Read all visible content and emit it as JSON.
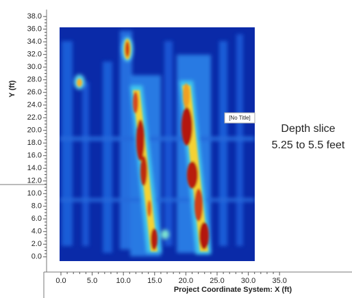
{
  "chart_data": {
    "type": "heatmap",
    "inner_title": "[No Title]",
    "xlabel": "Project Coordinate System: X (ft)",
    "ylabel": "Y (ft)",
    "annotation": [
      "Depth slice",
      "5.25 to 5.5 feet"
    ],
    "xlim": [
      -2.3,
      46.6
    ],
    "ylim": [
      -2.4,
      39.1
    ],
    "xticks": [
      {
        "value": 0,
        "label": "0.0"
      },
      {
        "value": 5,
        "label": "5.0"
      },
      {
        "value": 10,
        "label": "10.0"
      },
      {
        "value": 15,
        "label": "15.0"
      },
      {
        "value": 20,
        "label": "20.0"
      },
      {
        "value": 25,
        "label": "25.0"
      },
      {
        "value": 30,
        "label": "30.0"
      },
      {
        "value": 35,
        "label": "35.0"
      }
    ],
    "yticks": [
      {
        "value": 0,
        "label": "0.0"
      },
      {
        "value": 2,
        "label": "2.0"
      },
      {
        "value": 4,
        "label": "4.0"
      },
      {
        "value": 6,
        "label": "6.0"
      },
      {
        "value": 8,
        "label": "8.0"
      },
      {
        "value": 10,
        "label": "10.0"
      },
      {
        "value": 12,
        "label": "12.0"
      },
      {
        "value": 14,
        "label": "14.0"
      },
      {
        "value": 16,
        "label": "16.0"
      },
      {
        "value": 18,
        "label": "18.0"
      },
      {
        "value": 20,
        "label": "20.0"
      },
      {
        "value": 22,
        "label": "22.0"
      },
      {
        "value": 24,
        "label": "24.0"
      },
      {
        "value": 26,
        "label": "26.0"
      },
      {
        "value": 28,
        "label": "28.0"
      },
      {
        "value": 30,
        "label": "30.0"
      },
      {
        "value": 32,
        "label": "32.0"
      },
      {
        "value": 34,
        "label": "34.0"
      },
      {
        "value": 36,
        "label": "36.0"
      },
      {
        "value": 38,
        "label": "38.0"
      }
    ]
  }
}
